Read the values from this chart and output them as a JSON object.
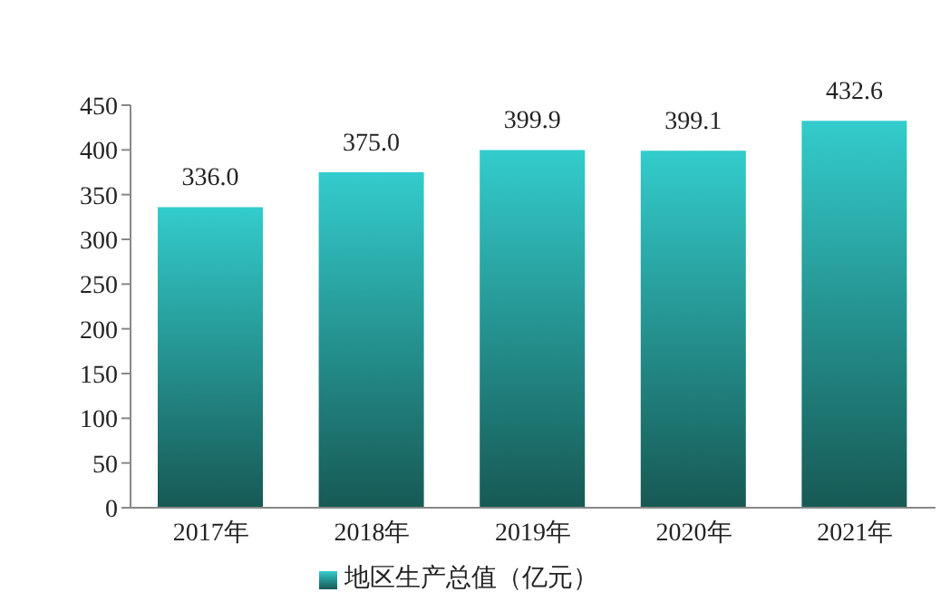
{
  "chart_data": {
    "type": "bar",
    "categories": [
      "2017年",
      "2018年",
      "2019年",
      "2020年",
      "2021年"
    ],
    "series": [
      {
        "name": "地区生产总值（亿元）",
        "color": "#33cccc",
        "values": [
          336.0,
          375.0,
          399.9,
          399.1,
          432.6
        ],
        "value_labels": [
          "336.0",
          "375.0",
          "399.9",
          "399.1",
          "432.6"
        ]
      }
    ],
    "ylim": [
      0,
      450
    ],
    "yticks": [
      0,
      50,
      100,
      150,
      200,
      250,
      300,
      350,
      400,
      450
    ],
    "grid": false,
    "legend": "bottom"
  }
}
